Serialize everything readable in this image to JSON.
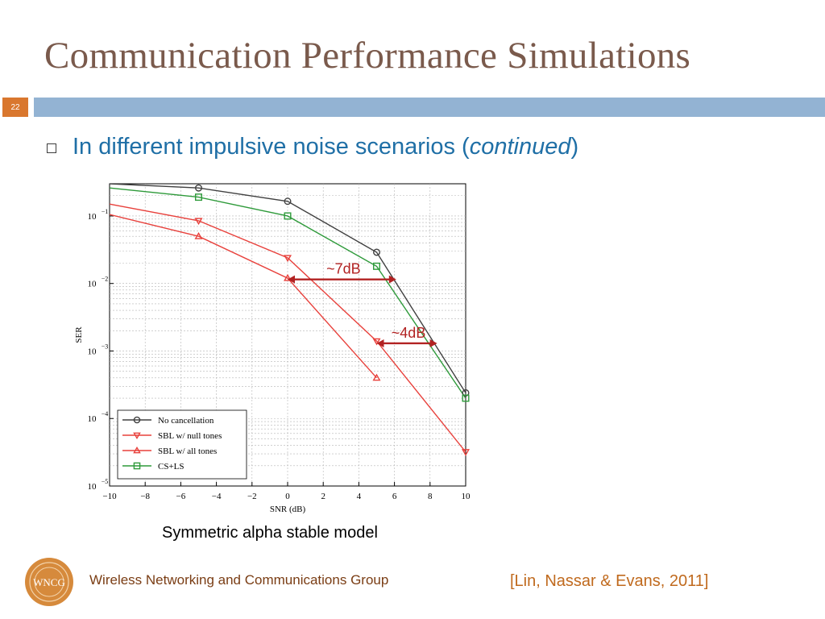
{
  "slide": {
    "title": "Communication Performance Simulations",
    "page_number": "22",
    "bullet_prefix": "In different impulsive noise scenarios (",
    "bullet_emphasis": "continued",
    "bullet_suffix": ")",
    "caption": "Symmetric alpha stable model",
    "group_name": "Wireless Networking and Communications Group",
    "logo_text": "WNCG",
    "citation": "[Lin, Nassar & Evans, 2011]"
  },
  "colors": {
    "title": "#7a5a4c",
    "title_bar": "#93b3d3",
    "page_badge": "#d9772e",
    "bullet_text": "#1f6fa6",
    "annotation": "#b22222",
    "logo": "#d68a3c"
  },
  "chart_data": {
    "type": "line",
    "xlabel": "SNR (dB)",
    "ylabel": "SER",
    "xlim": [
      -10,
      10
    ],
    "ylim": [
      1e-05,
      0.3
    ],
    "yscale": "log",
    "grid": true,
    "x_ticks": [
      -10,
      -8,
      -6,
      -4,
      -2,
      0,
      2,
      4,
      6,
      8,
      10
    ],
    "y_ticks": [
      {
        "value": 0.1,
        "base": "10",
        "exp": "−1"
      },
      {
        "value": 0.01,
        "base": "10",
        "exp": "−2"
      },
      {
        "value": 0.001,
        "base": "10",
        "exp": "−3"
      },
      {
        "value": 0.0001,
        "base": "10",
        "exp": "−4"
      },
      {
        "value": 1e-05,
        "base": "10",
        "exp": "−5"
      }
    ],
    "legend_position": "bottom-left",
    "series": [
      {
        "name": "No cancellation",
        "color": "#404040",
        "marker": "circle",
        "x": [
          -10,
          -5,
          0,
          5,
          10
        ],
        "y": [
          0.3,
          0.26,
          0.165,
          0.029,
          0.00024
        ]
      },
      {
        "name": "SBL w/ null tones",
        "color": "#e8413c",
        "marker": "triangle-down",
        "x": [
          -10,
          -5,
          0,
          5,
          10
        ],
        "y": [
          0.15,
          0.085,
          0.024,
          0.0014,
          3.2e-05
        ]
      },
      {
        "name": "SBL w/ all tones",
        "color": "#e8413c",
        "marker": "triangle-up",
        "x": [
          -10,
          -5,
          0,
          5
        ],
        "y": [
          0.105,
          0.05,
          0.012,
          0.0004
        ]
      },
      {
        "name": "CS+LS",
        "color": "#2e9a3a",
        "marker": "square",
        "x": [
          -10,
          -5,
          0,
          5,
          10
        ],
        "y": [
          0.26,
          0.19,
          0.1,
          0.018,
          0.0002
        ]
      }
    ],
    "annotations": [
      {
        "text": "~7dB",
        "x_from": 0,
        "x_to": 6.1,
        "y": 0.0115
      },
      {
        "text": "~4dB",
        "x_from": 5,
        "x_to": 8.4,
        "y": 0.0013
      }
    ]
  }
}
